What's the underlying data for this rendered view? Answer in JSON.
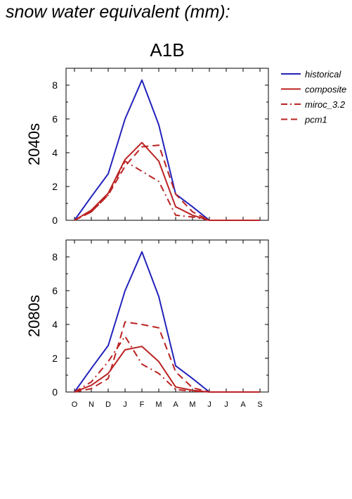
{
  "page": {
    "title": "snow water equivalent (mm):",
    "scenario": "A1B"
  },
  "colors": {
    "historical": "#2222bb",
    "future": "#bb2222"
  },
  "legend": [
    {
      "label": "historical",
      "style": "solid",
      "color": "#2222bb"
    },
    {
      "label": "composite",
      "style": "solid",
      "color": "#bb2222"
    },
    {
      "label": "miroc_3.2",
      "style": "dashdot",
      "color": "#bb2222"
    },
    {
      "label": "pcm1",
      "style": "dashed",
      "color": "#bb2222"
    }
  ],
  "chart_data": [
    {
      "type": "line",
      "panel_label": "2040s",
      "title": "A1B",
      "categories": [
        "O",
        "N",
        "D",
        "J",
        "F",
        "M",
        "A",
        "M",
        "J",
        "J",
        "A",
        "S"
      ],
      "ylim": [
        0,
        9
      ],
      "yticks": [
        0,
        2,
        4,
        6,
        8
      ],
      "series": [
        {
          "name": "historical",
          "style": "solid",
          "color": "#2222bb",
          "values": [
            0,
            1.4,
            2.75,
            6.0,
            8.3,
            5.65,
            1.55,
            0.8,
            0.0,
            0.0,
            0.0,
            0.0
          ]
        },
        {
          "name": "composite",
          "style": "solid",
          "color": "#bb2222",
          "values": [
            0,
            0.6,
            1.6,
            3.6,
            4.6,
            3.5,
            0.8,
            0.3,
            0.0,
            0.0,
            0.0,
            0.0
          ]
        },
        {
          "name": "miroc_3.2",
          "style": "dashdot",
          "color": "#bb2222",
          "values": [
            0,
            0.5,
            1.5,
            3.5,
            2.9,
            2.3,
            0.3,
            0.2,
            0.0,
            0.0,
            0.0,
            0.0
          ]
        },
        {
          "name": "pcm1",
          "style": "dashed",
          "color": "#bb2222",
          "values": [
            0,
            0.5,
            1.5,
            3.2,
            4.35,
            4.45,
            1.55,
            0.5,
            0.0,
            0.0,
            0.0,
            0.0
          ]
        }
      ]
    },
    {
      "type": "line",
      "panel_label": "2080s",
      "categories": [
        "O",
        "N",
        "D",
        "J",
        "F",
        "M",
        "A",
        "M",
        "J",
        "J",
        "A",
        "S"
      ],
      "ylim": [
        0,
        9
      ],
      "yticks": [
        0,
        2,
        4,
        6,
        8
      ],
      "series": [
        {
          "name": "historical",
          "style": "solid",
          "color": "#2222bb",
          "values": [
            0,
            1.4,
            2.75,
            6.0,
            8.3,
            5.65,
            1.55,
            0.8,
            0.0,
            0.0,
            0.0,
            0.0
          ]
        },
        {
          "name": "composite",
          "style": "solid",
          "color": "#bb2222",
          "values": [
            0,
            0.4,
            1.1,
            2.5,
            2.7,
            1.8,
            0.3,
            0.1,
            0.0,
            0.0,
            0.0,
            0.0
          ]
        },
        {
          "name": "miroc_3.2",
          "style": "dashdot",
          "color": "#bb2222",
          "values": [
            0,
            0.6,
            1.8,
            3.3,
            1.65,
            1.1,
            0.15,
            0.05,
            0.0,
            0.0,
            0.0,
            0.0
          ]
        },
        {
          "name": "pcm1",
          "style": "dashed",
          "color": "#bb2222",
          "values": [
            0,
            0.2,
            0.8,
            4.15,
            4.0,
            3.8,
            1.2,
            0.25,
            0.0,
            0.0,
            0.0,
            0.0
          ]
        }
      ]
    }
  ]
}
